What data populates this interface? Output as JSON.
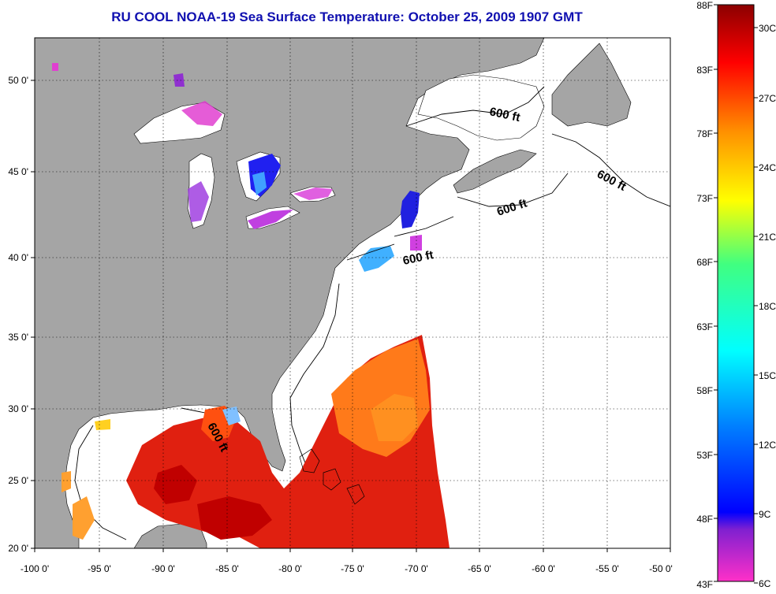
{
  "title": "RU COOL  NOAA-19  Sea Surface Temperature:  October 25, 2009 1907 GMT",
  "longitude_labels": [
    "-100 0'",
    "-95 0'",
    "-90 0'",
    "-85 0'",
    "-80 0'",
    "-75 0'",
    "-70 0'",
    "-65 0'",
    "-60 0'",
    "-55 0'",
    "-50 0'"
  ],
  "latitude_labels": [
    "50 0'",
    "45 0'",
    "40 0'",
    "35 0'",
    "30 0'",
    "25 0'",
    "20 0'"
  ],
  "contour_labels": [
    "600 ft",
    "600 ft",
    "600 ft",
    "600 ft",
    "600 ft"
  ],
  "colorbar": {
    "fahrenheit_labels": [
      "88F",
      "83F",
      "78F",
      "73F",
      "68F",
      "63F",
      "58F",
      "53F",
      "48F",
      "43F"
    ],
    "celsius_labels": [
      "30C",
      "27C",
      "24C",
      "21C",
      "18C",
      "15C",
      "12C",
      "9C",
      "6C"
    ],
    "colors": [
      "#8b0000",
      "#ff0000",
      "#ff8000",
      "#ffff00",
      "#80ff00",
      "#00ff80",
      "#00ffff",
      "#0080ff",
      "#0000ff",
      "#8000ff",
      "#ff00ff"
    ]
  },
  "map_colors": {
    "land": "#a5a5a5",
    "ocean_nodata": "#ffffff",
    "grid": "#000000"
  }
}
